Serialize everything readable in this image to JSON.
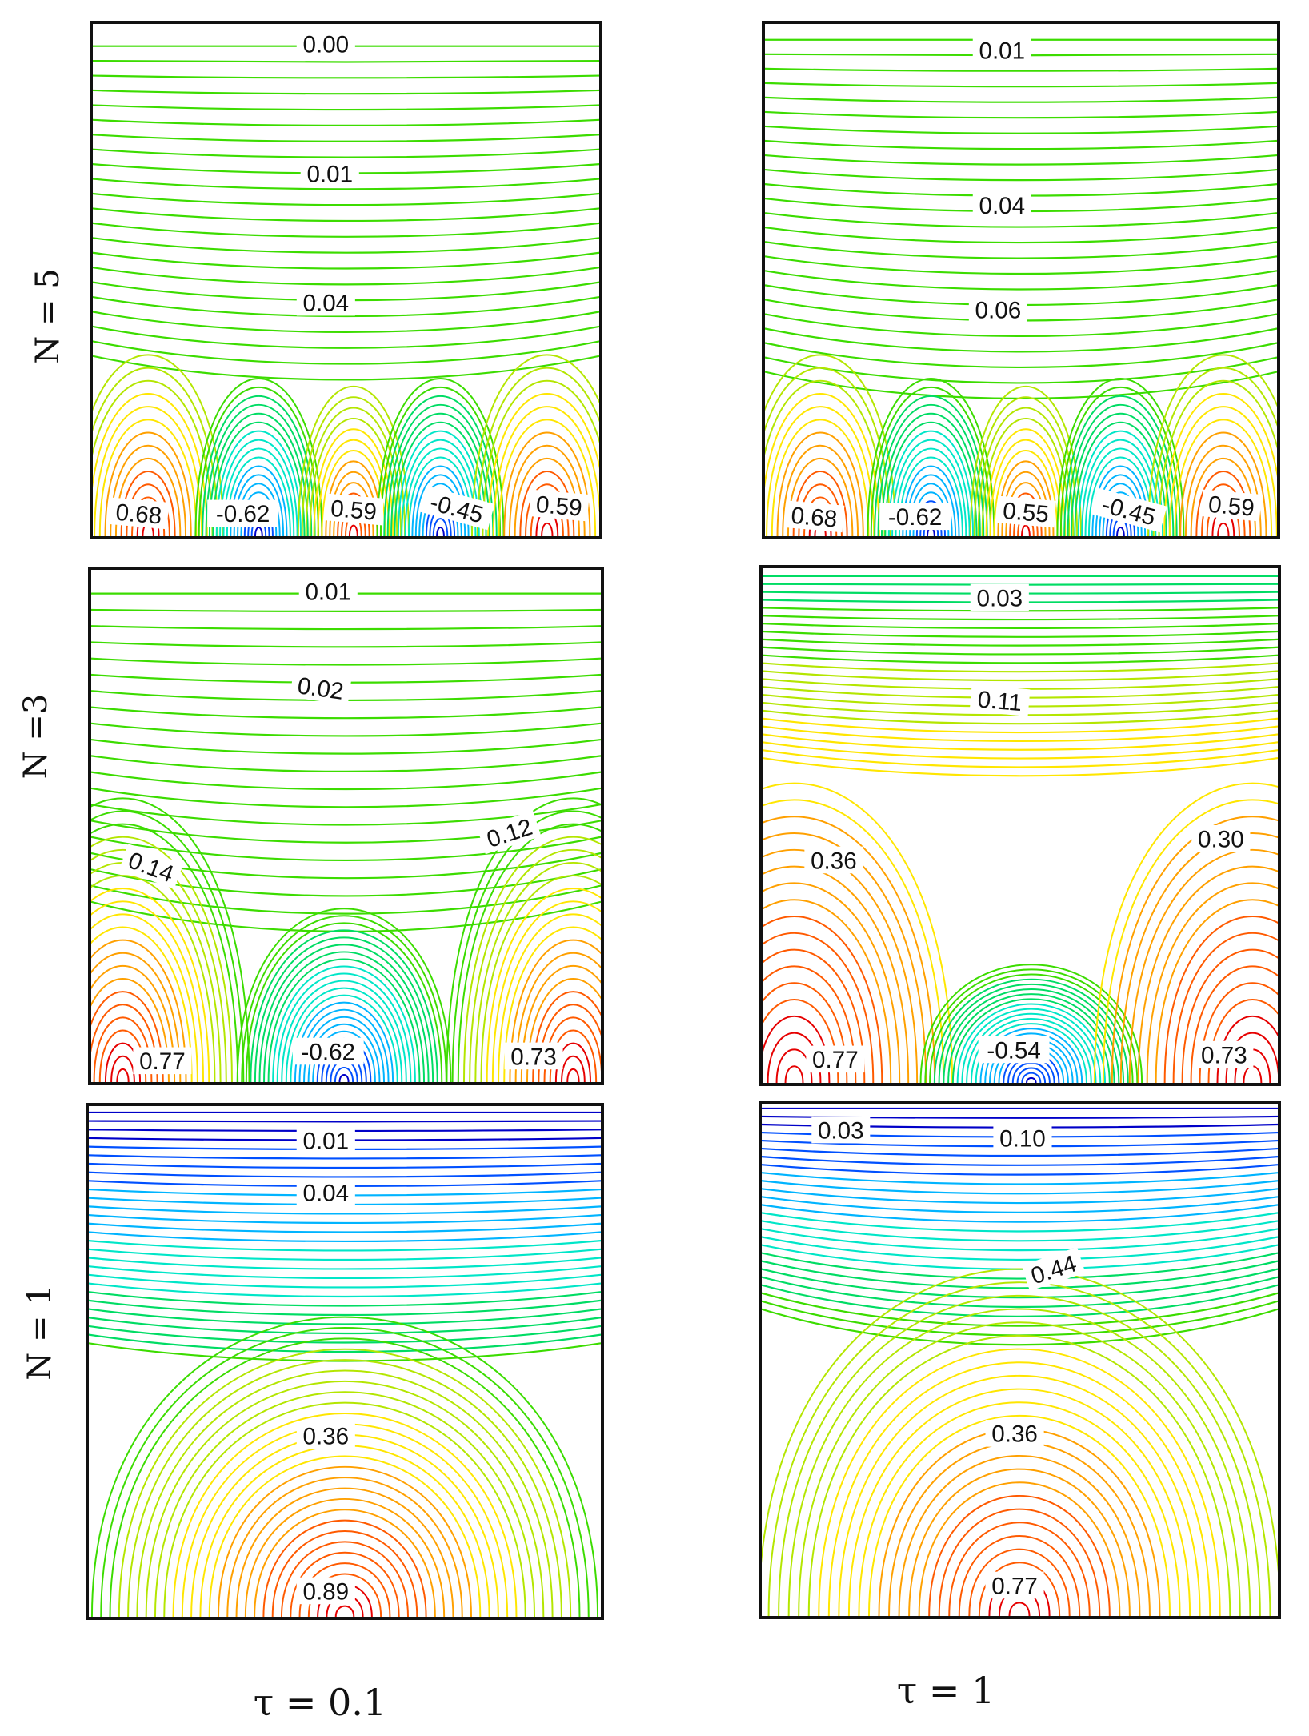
{
  "figure": {
    "row_labels": [
      "N = 5",
      "N =3",
      "N = 1"
    ],
    "column_labels": [
      "τ = 0.1",
      "τ = 1"
    ],
    "palette": [
      "#0000c8",
      "#0050ff",
      "#00b4ff",
      "#00e6c8",
      "#00dc64",
      "#3cdc00",
      "#b4e600",
      "#ffe600",
      "#ffa000",
      "#ff5a00",
      "#e60000"
    ]
  },
  "panels": [
    {
      "id": "n5-tau01",
      "row": "N = 5",
      "column": "τ = 0.1",
      "contour_labels": [
        "0.00",
        "0.01",
        "0.04",
        "0.68",
        "-0.62",
        "0.59",
        "-0.45",
        "0.59"
      ]
    },
    {
      "id": "n5-tau1",
      "row": "N = 5",
      "column": "τ = 1",
      "contour_labels": [
        "0.01",
        "0.04",
        "0.06",
        "0.68",
        "-0.62",
        "0.55",
        "-0.45",
        "0.59"
      ]
    },
    {
      "id": "n3-tau01",
      "row": "N =3",
      "column": "τ = 0.1",
      "contour_labels": [
        "0.01",
        "0.02",
        "0.14",
        "0.12",
        "0.77",
        "-0.62",
        "0.73"
      ]
    },
    {
      "id": "n3-tau1",
      "row": "N =3",
      "column": "τ = 1",
      "contour_labels": [
        "0.03",
        "0.11",
        "0.36",
        "0.30",
        "0.77",
        "-0.54",
        "0.73"
      ]
    },
    {
      "id": "n1-tau01",
      "row": "N = 1",
      "column": "τ = 0.1",
      "contour_labels": [
        "0.01",
        "0.04",
        "0.36",
        "0.89"
      ]
    },
    {
      "id": "n1-tau1",
      "row": "N = 1",
      "column": "τ = 1",
      "contour_labels": [
        "0.03",
        "0.10",
        "0.44",
        "0.36",
        "0.77"
      ]
    }
  ]
}
